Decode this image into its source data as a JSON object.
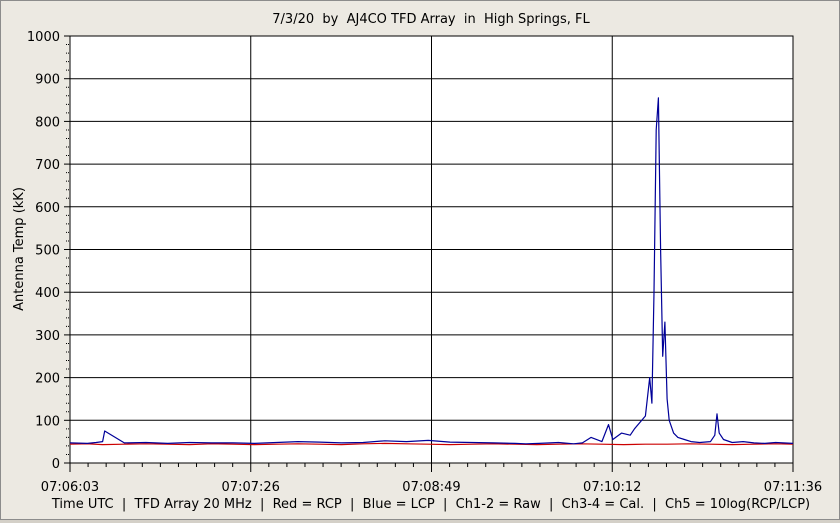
{
  "chart_data": {
    "type": "line",
    "title": "7/3/20  by  AJ4CO TFD Array  in  High Springs, FL",
    "ylabel": "Antenna Temp (kK)",
    "caption": "Time UTC  |  TFD Array 20 MHz  |  Red = RCP  |  Blue = LCP  |  Ch1-2 = Raw  |  Ch3-4 = Cal.  |  Ch5 = 10log(RCP/LCP)",
    "ylim": [
      0,
      1000
    ],
    "yticks": [
      "0",
      "100",
      "200",
      "300",
      "400",
      "500",
      "600",
      "700",
      "800",
      "900",
      "1000"
    ],
    "xticks": [
      "07:06:03",
      "07:07:26",
      "07:08:49",
      "07:10:12",
      "07:11:36"
    ],
    "xlim_seconds": [
      0,
      333
    ],
    "grid": true,
    "series": [
      {
        "name": "RCP",
        "color": "#cc0000",
        "x": [
          0,
          8,
          15,
          25,
          35,
          45,
          55,
          65,
          75,
          85,
          95,
          105,
          115,
          125,
          135,
          145,
          155,
          165,
          175,
          185,
          195,
          205,
          215,
          225,
          235,
          245,
          255,
          265,
          275,
          285,
          295,
          305,
          315,
          325,
          333
        ],
        "y": [
          44,
          45,
          43,
          44,
          45,
          44,
          43,
          45,
          44,
          43,
          44,
          45,
          44,
          43,
          45,
          46,
          45,
          44,
          43,
          44,
          45,
          44,
          43,
          44,
          45,
          44,
          43,
          44,
          44,
          45,
          44,
          43,
          44,
          45,
          44
        ]
      },
      {
        "name": "LCP",
        "color": "#000099",
        "x": [
          0,
          8,
          12,
          15,
          16,
          25,
          35,
          45,
          55,
          65,
          75,
          85,
          95,
          105,
          115,
          125,
          135,
          145,
          155,
          165,
          175,
          185,
          195,
          205,
          210,
          216,
          225,
          232,
          236,
          240,
          245,
          248,
          250,
          254,
          258,
          260,
          265,
          267,
          268,
          269,
          270,
          271,
          272,
          273,
          274,
          275,
          276,
          278,
          280,
          283,
          286,
          290,
          295,
          297,
          298,
          299,
          301,
          305,
          310,
          315,
          320,
          325,
          333
        ],
        "y": [
          47,
          46,
          48,
          50,
          75,
          47,
          48,
          46,
          48,
          47,
          47,
          46,
          48,
          50,
          49,
          47,
          48,
          52,
          50,
          53,
          49,
          48,
          47,
          46,
          45,
          46,
          48,
          45,
          47,
          60,
          50,
          90,
          55,
          70,
          65,
          80,
          110,
          200,
          140,
          400,
          780,
          855,
          500,
          250,
          330,
          150,
          100,
          70,
          60,
          55,
          50,
          48,
          50,
          65,
          115,
          70,
          55,
          48,
          50,
          47,
          46,
          48,
          46
        ]
      }
    ]
  }
}
